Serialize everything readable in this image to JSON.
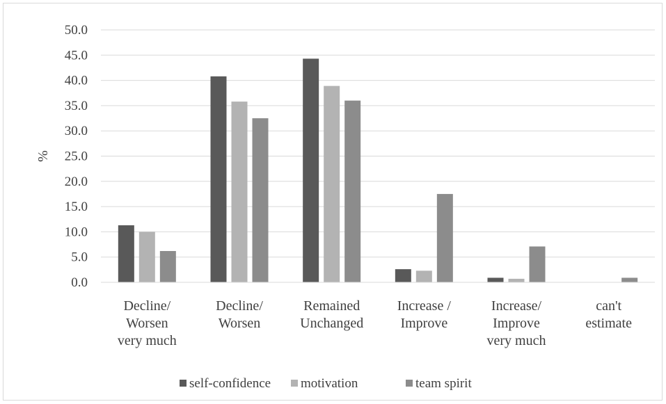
{
  "chart_data": {
    "type": "bar",
    "title": "",
    "xlabel": "",
    "ylabel": "%",
    "ylim": [
      0,
      50
    ],
    "yticks": [
      "0.0",
      "5.0",
      "10.0",
      "15.0",
      "20.0",
      "25.0",
      "30.0",
      "35.0",
      "40.0",
      "45.0",
      "50.0"
    ],
    "grid": true,
    "legend_position": "bottom",
    "categories": [
      [
        "Decline/",
        "Worsen",
        "very much"
      ],
      [
        "Decline/",
        "Worsen"
      ],
      [
        "Remained",
        "Unchanged"
      ],
      [
        "Increase /",
        "Improve"
      ],
      [
        "Increase/",
        "Improve",
        "very much"
      ],
      [
        "can't",
        "estimate"
      ]
    ],
    "series": [
      {
        "name": "self-confidence",
        "color": "#595959",
        "values": [
          11.3,
          40.8,
          44.3,
          2.6,
          0.9,
          0.0
        ]
      },
      {
        "name": "motivation",
        "color": "#b3b3b3",
        "values": [
          10.0,
          35.8,
          38.9,
          2.3,
          0.7,
          0.0
        ]
      },
      {
        "name": "team spirit",
        "color": "#8c8c8c",
        "values": [
          6.2,
          32.5,
          36.0,
          17.5,
          7.1,
          0.9
        ]
      }
    ]
  }
}
